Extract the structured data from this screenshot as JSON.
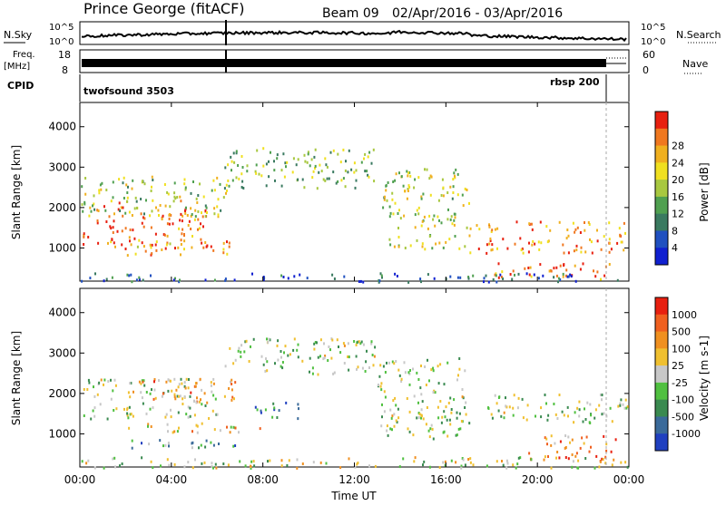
{
  "header": {
    "station": "Prince George (fitACF)",
    "beam": "Beam 09",
    "date_range": "02/Apr/2016 - 03/Apr/2016"
  },
  "top_panels": {
    "nsky_label": "N.Sky",
    "nsky_ticks": [
      "10^5",
      "10^0"
    ],
    "nsearch_label": "N.Search",
    "nsearch_ticks": [
      "10^5",
      "10^0"
    ],
    "freq_label": "Freq.",
    "freq_unit": "[MHz]",
    "freq_ticks": [
      "18",
      "8"
    ],
    "nave_label": "Nave",
    "nave_ticks": [
      "60",
      "0"
    ],
    "cpid_label": "CPID",
    "cpid_segments": [
      {
        "name": "twofsound 3503",
        "start_hour": 0,
        "end_hour": 23
      },
      {
        "name": "rbsp 200",
        "start_hour": 23,
        "end_hour": 24
      }
    ]
  },
  "chart_data": [
    {
      "type": "heatmap",
      "title": "",
      "xlabel": "Time UT",
      "ylabel": "Slant Range [km]",
      "x_ticks": [
        "00:00",
        "04:00",
        "08:00",
        "12:00",
        "16:00",
        "20:00",
        "00:00"
      ],
      "x_range_hours": [
        0,
        24
      ],
      "y_ticks": [
        1000,
        2000,
        3000,
        4000
      ],
      "ylim": [
        180,
        4600
      ],
      "colorbar": {
        "label": "Power [dB]",
        "ticks": [
          "4",
          "8",
          "12",
          "16",
          "20",
          "24",
          "28"
        ],
        "colors": [
          "#1020d0",
          "#2050c0",
          "#3a7a60",
          "#50a050",
          "#a8c840",
          "#f0e020",
          "#f0b020",
          "#f07820",
          "#e82010"
        ]
      },
      "regions": [
        {
          "t0": 0.1,
          "t1": 5.5,
          "r0": 1000,
          "r1": 2200,
          "level": 0.85
        },
        {
          "t0": 0.0,
          "t1": 6.5,
          "r0": 1800,
          "r1": 2800,
          "level": 0.5
        },
        {
          "t0": 2.0,
          "t1": 6.8,
          "r0": 850,
          "r1": 1250,
          "level": 0.75
        },
        {
          "t0": 6.3,
          "t1": 13.0,
          "r0": 2500,
          "r1": 3500,
          "level": 0.45
        },
        {
          "t0": 13.2,
          "t1": 17.0,
          "r0": 1000,
          "r1": 3000,
          "level": 0.55
        },
        {
          "t0": 17.0,
          "t1": 24.0,
          "r0": 900,
          "r1": 1700,
          "level": 0.8
        },
        {
          "t0": 18.0,
          "t1": 23.5,
          "r0": 250,
          "r1": 650,
          "level": 0.85
        },
        {
          "t0": 0.0,
          "t1": 24.0,
          "r0": 180,
          "r1": 400,
          "level": 0.2
        }
      ]
    },
    {
      "type": "heatmap",
      "title": "",
      "xlabel": "Time UT",
      "ylabel": "Slant Range [km]",
      "x_ticks": [
        "00:00",
        "04:00",
        "08:00",
        "12:00",
        "16:00",
        "20:00",
        "00:00"
      ],
      "x_range_hours": [
        0,
        24
      ],
      "y_ticks": [
        1000,
        2000,
        3000,
        4000
      ],
      "ylim": [
        180,
        4600
      ],
      "colorbar": {
        "label": "Velocity [m s-1]",
        "ticks": [
          "1000",
          "500",
          "100",
          "25",
          "-25",
          "-100",
          "-500",
          "-1000"
        ],
        "colors": [
          "#2040c0",
          "#3a6a9a",
          "#3a8a50",
          "#50c040",
          "#c8c8c8",
          "#f0c030",
          "#f09020",
          "#f06020",
          "#e82010"
        ]
      },
      "regions": [
        {
          "t0": 0.1,
          "t1": 6.0,
          "r0": 1400,
          "r1": 2400,
          "level": 0.45
        },
        {
          "t0": 6.3,
          "t1": 13.0,
          "r0": 2500,
          "r1": 3400,
          "level": 0.45
        },
        {
          "t0": 2.0,
          "t1": 6.8,
          "r0": 1800,
          "r1": 2400,
          "level": 0.7
        },
        {
          "t0": 7.5,
          "t1": 9.8,
          "r0": 1400,
          "r1": 1800,
          "level": 0.2
        },
        {
          "t0": 2.0,
          "t1": 8.0,
          "r0": 1050,
          "r1": 1300,
          "level": 0.6
        },
        {
          "t0": 13.0,
          "t1": 17.0,
          "r0": 900,
          "r1": 2900,
          "level": 0.45
        },
        {
          "t0": 17.5,
          "t1": 24.0,
          "r0": 1300,
          "r1": 2000,
          "level": 0.45
        },
        {
          "t0": 19.5,
          "t1": 23.5,
          "r0": 350,
          "r1": 1000,
          "level": 0.75
        },
        {
          "t0": 2.0,
          "t1": 7.0,
          "r0": 650,
          "r1": 900,
          "level": 0.3
        },
        {
          "t0": 0.0,
          "t1": 24.0,
          "r0": 180,
          "r1": 450,
          "level": 0.5
        }
      ]
    }
  ]
}
